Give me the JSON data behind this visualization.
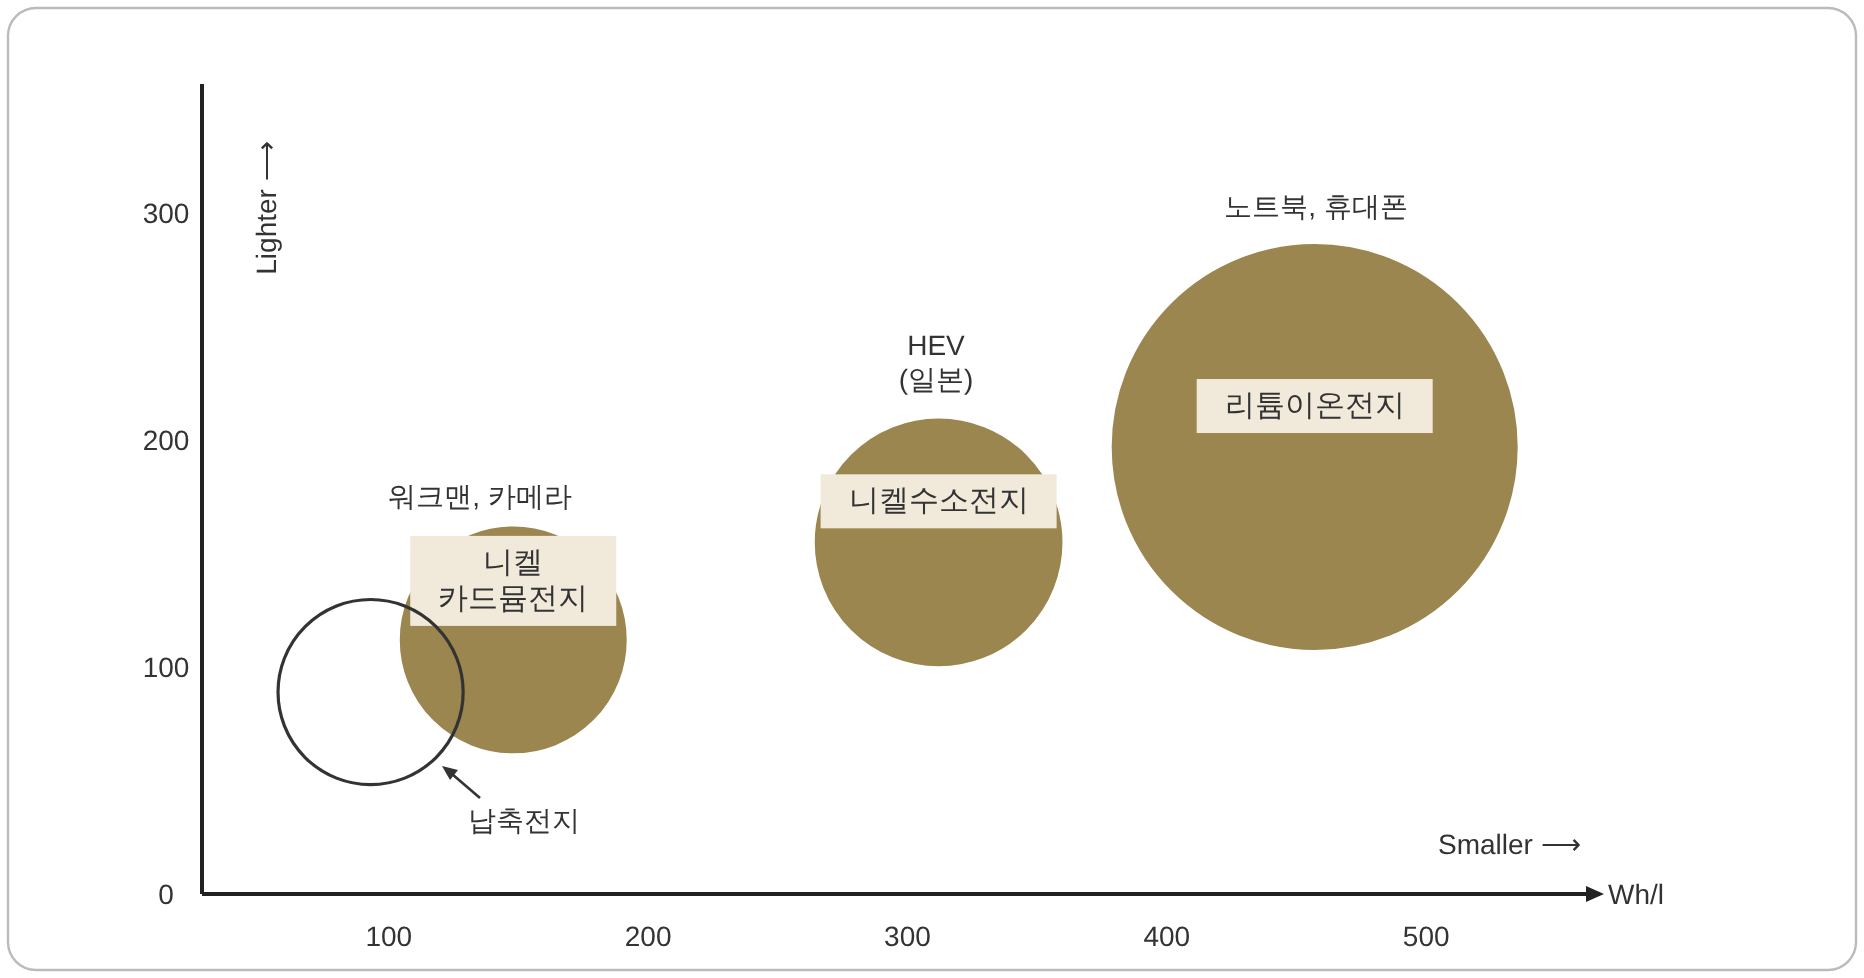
{
  "chart_data": {
    "type": "bubble",
    "xlabel": "Wh/l",
    "xlim": [
      28,
      567
    ],
    "ylim": [
      0,
      357
    ],
    "xticks": [
      100,
      200,
      300,
      400,
      500
    ],
    "yticks": [
      0,
      100,
      200,
      300
    ],
    "series": [
      {
        "color": "#333333",
        "x": [
          93
        ],
        "values": [
          89
        ],
        "sizes": [
          0.21
        ]
      },
      {
        "name": "니켈\n카드뮴전지",
        "color": "#9c8650",
        "x": [
          148
        ],
        "values": [
          112
        ],
        "sizes": [
          0.31
        ]
      },
      {
        "name": "니켈수소전지",
        "color": "#9c8650",
        "x": [
          312
        ],
        "values": [
          155
        ],
        "sizes": [
          0.37
        ]
      },
      {
        "name": "리튬이온전지",
        "color": "#9c8650",
        "x": [
          457
        ],
        "values": [
          197
        ],
        "sizes": [
          1
        ]
      }
    ],
    "annotations": [
      "Smaller ⟶",
      "Lighter ⟶",
      "워크맨, 카메라",
      "HEV\n(일본)",
      "노트북, 휴대폰",
      "납축전지"
    ]
  }
}
